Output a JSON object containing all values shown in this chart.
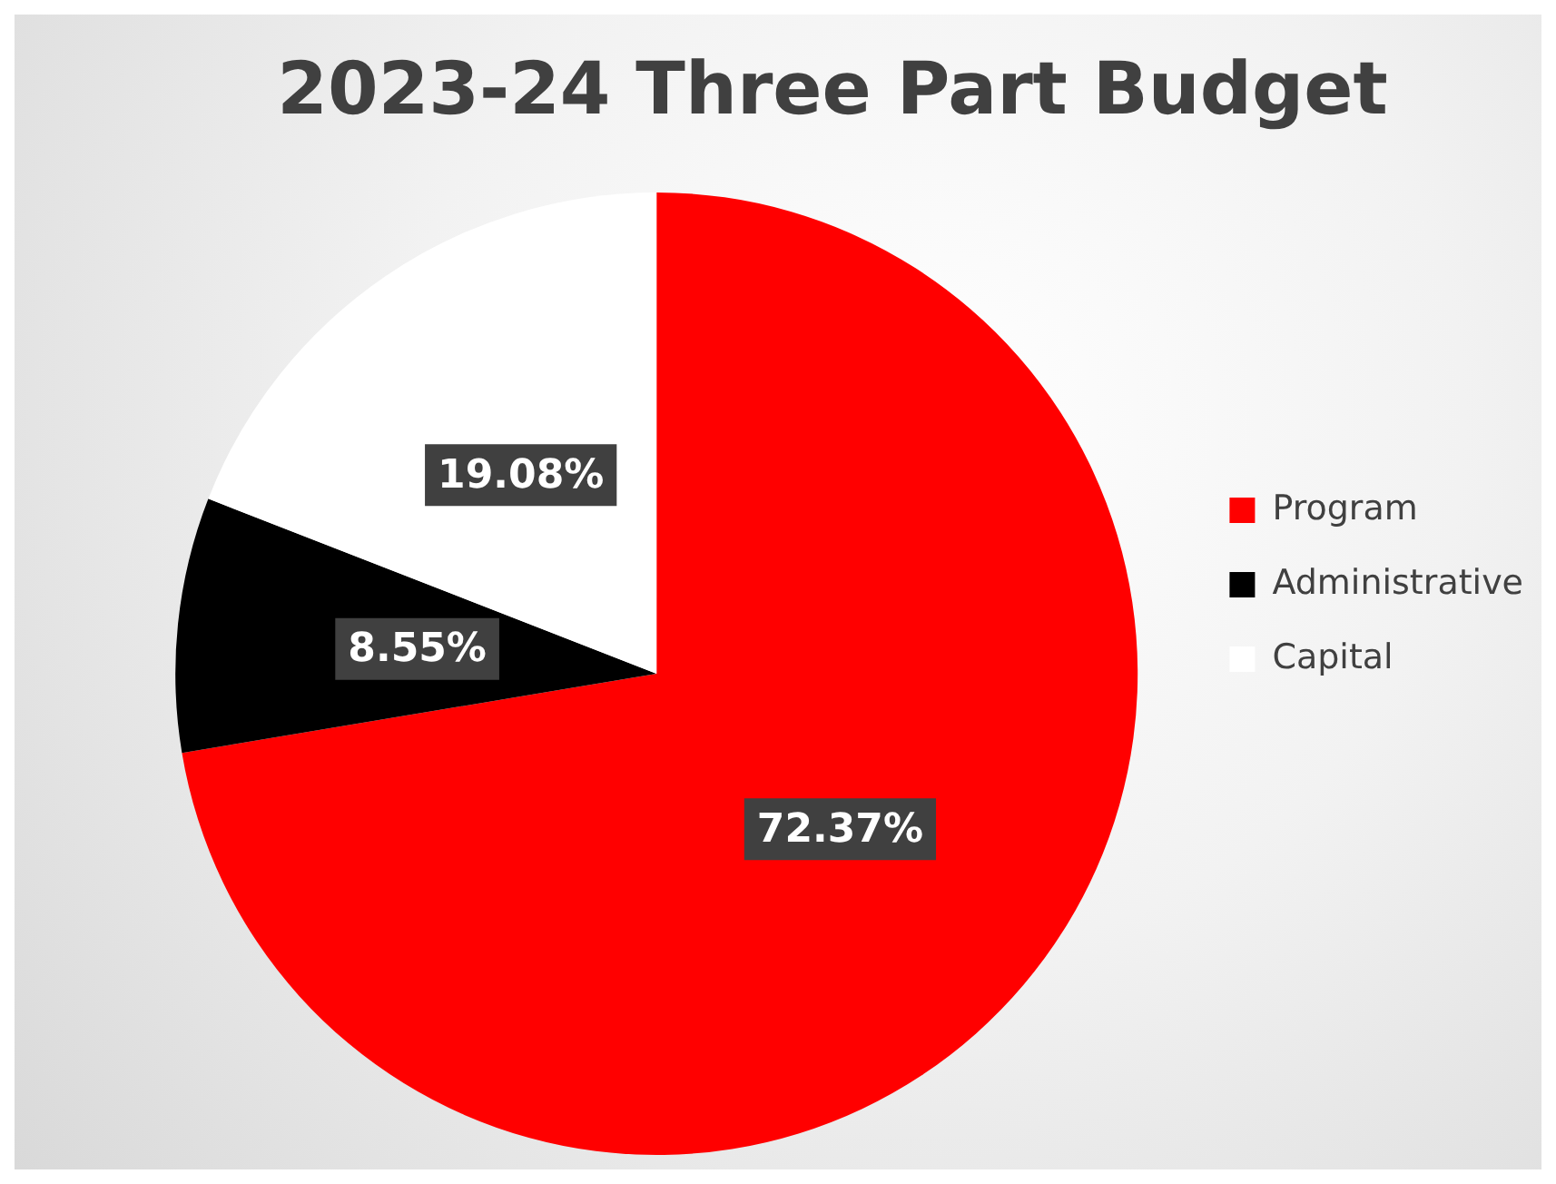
{
  "chart_data": {
    "type": "pie",
    "title": "2023-24 Three Part Budget",
    "categories": [
      "Program",
      "Administrative",
      "Capital"
    ],
    "values": [
      72.37,
      8.55,
      19.08
    ],
    "colors": [
      "#ff0000",
      "#000000",
      "#ffffff"
    ],
    "value_labels": [
      "72.37%",
      "8.55%",
      "19.08%"
    ],
    "legend": "right"
  }
}
